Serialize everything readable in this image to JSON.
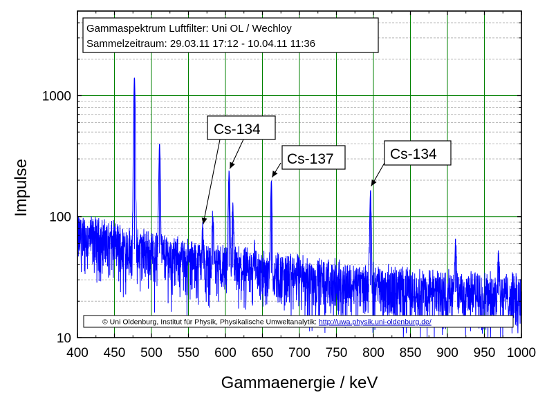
{
  "chart_data": {
    "type": "line",
    "title_lines": [
      "Gammaspektrum Luftfilter: Uni OL / Wechloy",
      "Sammelzeitraum: 29.03.11 17:12 - 10.04.11 11:36"
    ],
    "xlabel": "Gammaenergie / keV",
    "ylabel": "Impulse",
    "xlim": [
      400,
      1000
    ],
    "ylim": [
      10,
      5000
    ],
    "y_scale": "log",
    "x_ticks": [
      "400",
      "450",
      "500",
      "550",
      "600",
      "650",
      "700",
      "750",
      "800",
      "850",
      "900",
      "950",
      "1000"
    ],
    "y_ticks": [
      {
        "label": "10",
        "value": 10
      },
      {
        "label": "100",
        "value": 100
      },
      {
        "label": "1000",
        "value": 1000
      }
    ],
    "grid": "major gridlines green, minor horizontal gridlines dashed grey",
    "colors": {
      "series": "#0000ff",
      "grid_major": "#008000",
      "grid_minor": "#b4b4b4",
      "axis": "#000000"
    },
    "series": [
      {
        "background": [
          [
            400,
            70
          ],
          [
            425,
            65
          ],
          [
            450,
            60
          ],
          [
            470,
            55
          ],
          [
            490,
            52
          ],
          [
            510,
            50
          ],
          [
            530,
            45
          ],
          [
            550,
            43
          ],
          [
            570,
            41
          ],
          [
            590,
            40
          ],
          [
            610,
            38
          ],
          [
            630,
            36
          ],
          [
            650,
            35
          ],
          [
            680,
            33
          ],
          [
            700,
            32
          ],
          [
            730,
            30
          ],
          [
            760,
            28
          ],
          [
            800,
            27
          ],
          [
            850,
            25
          ],
          [
            900,
            24
          ],
          [
            950,
            23
          ],
          [
            1000,
            22
          ]
        ],
        "peaks": [
          {
            "x": 477,
            "y": 1400
          },
          {
            "x": 511,
            "y": 400
          },
          {
            "x": 569,
            "y": 80
          },
          {
            "x": 583,
            "y": 100
          },
          {
            "x": 605,
            "y": 230
          },
          {
            "x": 610,
            "y": 115
          },
          {
            "x": 639,
            "y": 60
          },
          {
            "x": 662,
            "y": 195
          },
          {
            "x": 796,
            "y": 165
          },
          {
            "x": 911,
            "y": 55
          },
          {
            "x": 969,
            "y": 50
          }
        ]
      }
    ],
    "annotations": [
      {
        "text": "Cs-134",
        "target_x": 569,
        "target_y": 80
      },
      {
        "text": "Cs-137",
        "target_x": 662,
        "target_y": 195
      },
      {
        "text": "Cs-134",
        "target_x": 796,
        "target_y": 165
      }
    ],
    "footer": {
      "prefix": "© Uni Oldenburg, Institut für Physik, Physikalische Umweltanalytik: ",
      "link": "http://uwa.physik.uni-oldenburg.de/"
    }
  }
}
